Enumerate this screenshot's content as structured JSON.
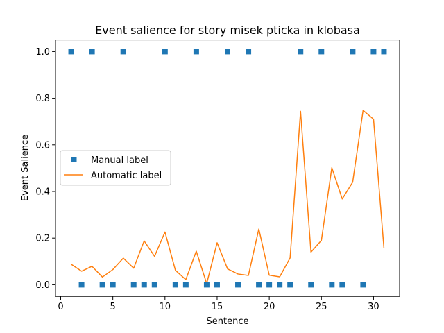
{
  "chart_data": {
    "type": "line",
    "title": "Event salience for story misek pticka in klobasa",
    "xlabel": "Sentence",
    "ylabel": "Event Salience",
    "xlim": [
      -0.5,
      32.5
    ],
    "ylim": [
      -0.05,
      1.05
    ],
    "x_ticks": [
      0,
      5,
      10,
      15,
      20,
      25,
      30
    ],
    "y_ticks": [
      0.0,
      0.2,
      0.4,
      0.6,
      0.8,
      1.0
    ],
    "x_tick_labels": [
      "0",
      "5",
      "10",
      "15",
      "20",
      "25",
      "30"
    ],
    "y_tick_labels": [
      "0.0",
      "0.2",
      "0.4",
      "0.6",
      "0.8",
      "1.0"
    ],
    "grid": false,
    "legend": {
      "placement": "center-left",
      "entries": [
        "Manual label",
        "Automatic label"
      ]
    },
    "series": [
      {
        "name": "Manual label",
        "style": "square-marker",
        "color": "#1f77b4",
        "x": [
          1,
          2,
          3,
          4,
          5,
          6,
          7,
          8,
          9,
          10,
          11,
          12,
          13,
          14,
          15,
          16,
          17,
          18,
          19,
          20,
          21,
          22,
          23,
          24,
          25,
          26,
          27,
          28,
          29,
          30,
          31
        ],
        "values": [
          1,
          0,
          1,
          0,
          0,
          1,
          0,
          0,
          0,
          1,
          0,
          0,
          1,
          0,
          0,
          1,
          0,
          1,
          0,
          0,
          0,
          0,
          1,
          0,
          1,
          0,
          0,
          1,
          0,
          1,
          1
        ]
      },
      {
        "name": "Automatic label",
        "style": "line",
        "color": "#ff7f0e",
        "x": [
          1,
          2,
          3,
          4,
          5,
          6,
          7,
          8,
          9,
          10,
          11,
          12,
          13,
          14,
          15,
          16,
          17,
          18,
          19,
          20,
          21,
          22,
          23,
          24,
          25,
          26,
          27,
          28,
          29,
          30,
          31
        ],
        "values": [
          0.088,
          0.058,
          0.079,
          0.033,
          0.065,
          0.114,
          0.071,
          0.188,
          0.122,
          0.226,
          0.062,
          0.022,
          0.144,
          0.005,
          0.18,
          0.068,
          0.046,
          0.04,
          0.239,
          0.041,
          0.034,
          0.115,
          0.744,
          0.14,
          0.19,
          0.502,
          0.368,
          0.44,
          0.748,
          0.71,
          0.156
        ]
      }
    ]
  }
}
